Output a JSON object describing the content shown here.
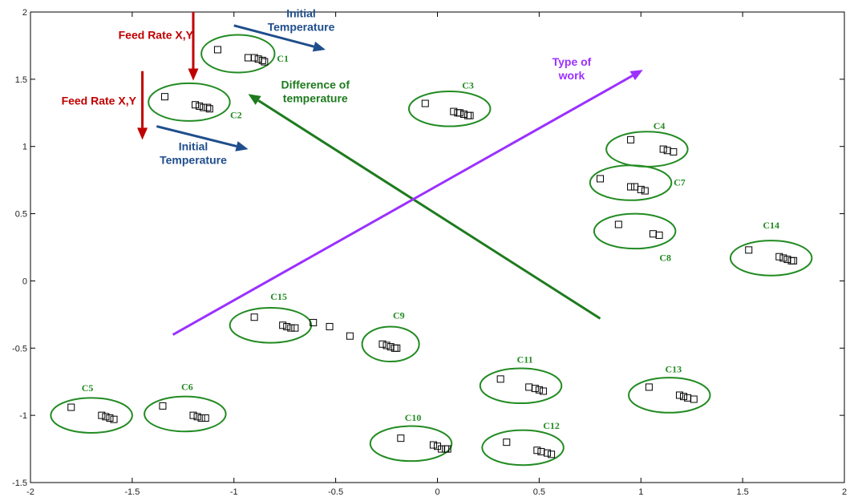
{
  "chart_data": {
    "type": "scatter",
    "title": "",
    "xlabel": "",
    "ylabel": "",
    "xlim": [
      -2,
      2
    ],
    "ylim": [
      -1.5,
      2
    ],
    "grid": false,
    "x_ticks": [
      -2,
      -1.5,
      -1,
      -0.5,
      0,
      0.5,
      1,
      1.5,
      2
    ],
    "y_ticks": [
      -1.5,
      -1,
      -0.5,
      0,
      0.5,
      1,
      1.5,
      2
    ],
    "x_tick_labels": [
      "-2",
      "-1.5",
      "-1",
      "-0.5",
      "0",
      "0.5",
      "1",
      "1.5",
      "2"
    ],
    "y_tick_labels": [
      "-1.5",
      "-1",
      "-0.5",
      "0",
      "0.5",
      "1",
      "1.5",
      "2"
    ],
    "colors": {
      "cluster": "#228B22",
      "feed_rate": "#C00000",
      "initial_temperature": "#1F4E8C",
      "difference": "#1E7B1E",
      "type_of_work": "#9B30FF",
      "marker": "#000000"
    },
    "clusters": [
      {
        "label": "C1",
        "center": [
          -0.98,
          1.69
        ],
        "radii": [
          0.18,
          0.14
        ],
        "points": [
          [
            -1.08,
            1.72
          ],
          [
            -0.93,
            1.66
          ],
          [
            -0.9,
            1.66
          ],
          [
            -0.88,
            1.65
          ],
          [
            -0.86,
            1.64
          ],
          [
            -0.85,
            1.63
          ]
        ]
      },
      {
        "label": "C2",
        "center": [
          -1.22,
          1.33
        ],
        "radii": [
          0.2,
          0.14
        ],
        "points": [
          [
            -1.34,
            1.37
          ],
          [
            -1.19,
            1.31
          ],
          [
            -1.17,
            1.3
          ],
          [
            -1.15,
            1.29
          ],
          [
            -1.13,
            1.29
          ],
          [
            -1.12,
            1.28
          ]
        ]
      },
      {
        "label": "C3",
        "center": [
          0.06,
          1.28
        ],
        "radii": [
          0.2,
          0.13
        ],
        "points": [
          [
            -0.06,
            1.32
          ],
          [
            0.08,
            1.26
          ],
          [
            0.1,
            1.25
          ],
          [
            0.11,
            1.25
          ],
          [
            0.13,
            1.24
          ],
          [
            0.15,
            1.23
          ],
          [
            0.16,
            1.23
          ]
        ]
      },
      {
        "label": "C4",
        "center": [
          1.03,
          0.98
        ],
        "radii": [
          0.2,
          0.13
        ],
        "points": [
          [
            0.95,
            1.05
          ],
          [
            1.11,
            0.98
          ],
          [
            1.13,
            0.97
          ],
          [
            1.16,
            0.96
          ]
        ]
      },
      {
        "label": "C7",
        "center": [
          0.95,
          0.73
        ],
        "radii": [
          0.2,
          0.13
        ],
        "points": [
          [
            0.8,
            0.76
          ],
          [
            0.95,
            0.7
          ],
          [
            0.97,
            0.7
          ],
          [
            1.0,
            0.68
          ],
          [
            1.02,
            0.67
          ]
        ]
      },
      {
        "label": "C8",
        "center": [
          0.97,
          0.37
        ],
        "radii": [
          0.2,
          0.13
        ],
        "points": [
          [
            0.89,
            0.42
          ],
          [
            1.06,
            0.35
          ],
          [
            1.09,
            0.34
          ]
        ]
      },
      {
        "label": "C14",
        "center": [
          1.64,
          0.17
        ],
        "radii": [
          0.2,
          0.13
        ],
        "points": [
          [
            1.53,
            0.23
          ],
          [
            1.68,
            0.18
          ],
          [
            1.7,
            0.17
          ],
          [
            1.72,
            0.16
          ],
          [
            1.74,
            0.15
          ],
          [
            1.75,
            0.15
          ]
        ]
      },
      {
        "label": "C15",
        "center": [
          -0.82,
          -0.33
        ],
        "radii": [
          0.2,
          0.13
        ],
        "points": [
          [
            -0.9,
            -0.27
          ],
          [
            -0.76,
            -0.33
          ],
          [
            -0.74,
            -0.34
          ],
          [
            -0.72,
            -0.35
          ],
          [
            -0.7,
            -0.35
          ]
        ]
      },
      {
        "label": "C9",
        "center": [
          -0.23,
          -0.47
        ],
        "radii": [
          0.14,
          0.13
        ],
        "points": [
          [
            -0.27,
            -0.47
          ],
          [
            -0.25,
            -0.48
          ],
          [
            -0.23,
            -0.49
          ],
          [
            -0.21,
            -0.5
          ],
          [
            -0.2,
            -0.5
          ]
        ]
      },
      {
        "label": "C5",
        "center": [
          -1.7,
          -1.0
        ],
        "radii": [
          0.2,
          0.13
        ],
        "points": [
          [
            -1.8,
            -0.94
          ],
          [
            -1.65,
            -1.0
          ],
          [
            -1.63,
            -1.01
          ],
          [
            -1.61,
            -1.02
          ],
          [
            -1.59,
            -1.03
          ]
        ]
      },
      {
        "label": "C6",
        "center": [
          -1.24,
          -0.99
        ],
        "radii": [
          0.2,
          0.13
        ],
        "points": [
          [
            -1.35,
            -0.93
          ],
          [
            -1.2,
            -1.0
          ],
          [
            -1.18,
            -1.01
          ],
          [
            -1.16,
            -1.02
          ],
          [
            -1.14,
            -1.02
          ]
        ]
      },
      {
        "label": "C10",
        "center": [
          -0.13,
          -1.21
        ],
        "radii": [
          0.2,
          0.13
        ],
        "points": [
          [
            -0.18,
            -1.17
          ],
          [
            -0.02,
            -1.22
          ],
          [
            0.0,
            -1.23
          ],
          [
            0.02,
            -1.25
          ],
          [
            0.04,
            -1.25
          ],
          [
            0.05,
            -1.25
          ]
        ]
      },
      {
        "label": "C11",
        "center": [
          0.41,
          -0.78
        ],
        "radii": [
          0.2,
          0.13
        ],
        "points": [
          [
            0.31,
            -0.73
          ],
          [
            0.45,
            -0.79
          ],
          [
            0.48,
            -0.8
          ],
          [
            0.5,
            -0.81
          ],
          [
            0.52,
            -0.82
          ]
        ]
      },
      {
        "label": "C12",
        "center": [
          0.42,
          -1.24
        ],
        "radii": [
          0.2,
          0.13
        ],
        "points": [
          [
            0.34,
            -1.2
          ],
          [
            0.49,
            -1.26
          ],
          [
            0.51,
            -1.27
          ],
          [
            0.54,
            -1.28
          ],
          [
            0.56,
            -1.29
          ]
        ]
      },
      {
        "label": "C13",
        "center": [
          1.14,
          -0.85
        ],
        "radii": [
          0.2,
          0.13
        ],
        "points": [
          [
            1.04,
            -0.79
          ],
          [
            1.19,
            -0.85
          ],
          [
            1.21,
            -0.86
          ],
          [
            1.23,
            -0.87
          ],
          [
            1.26,
            -0.88
          ]
        ]
      }
    ],
    "free_points": [
      [
        -0.61,
        -0.31
      ],
      [
        -0.53,
        -0.34
      ],
      [
        -0.43,
        -0.41
      ]
    ],
    "annotations": [
      {
        "lines": [
          "Feed Rate X,Y"
        ],
        "color_key": "feed_rate",
        "anchor": "end",
        "at": [
          -1.2,
          1.8
        ]
      },
      {
        "lines": [
          "Feed Rate X,Y"
        ],
        "color_key": "feed_rate",
        "anchor": "end",
        "at": [
          -1.48,
          1.31
        ]
      },
      {
        "lines": [
          "Initial",
          "Temperature"
        ],
        "color_key": "initial_temperature",
        "anchor": "middle",
        "at": [
          -0.67,
          1.96
        ]
      },
      {
        "lines": [
          "Initial",
          "Temperature"
        ],
        "color_key": "initial_temperature",
        "anchor": "middle",
        "at": [
          -1.2,
          0.97
        ]
      },
      {
        "lines": [
          "Difference of",
          "temperature"
        ],
        "color_key": "difference",
        "anchor": "middle",
        "at": [
          -0.6,
          1.43
        ]
      },
      {
        "lines": [
          "Type of",
          "work"
        ],
        "color_key": "type_of_work",
        "anchor": "middle",
        "at": [
          0.66,
          1.6
        ]
      }
    ],
    "arrows": [
      {
        "color_key": "feed_rate",
        "from": [
          -1.2,
          2.0
        ],
        "to": [
          -1.2,
          1.49
        ]
      },
      {
        "color_key": "feed_rate",
        "from": [
          -1.45,
          1.56
        ],
        "to": [
          -1.45,
          1.05
        ]
      },
      {
        "color_key": "initial_temperature",
        "from": [
          -1.0,
          1.9
        ],
        "to": [
          -0.55,
          1.72
        ]
      },
      {
        "color_key": "initial_temperature",
        "from": [
          -1.38,
          1.15
        ],
        "to": [
          -0.93,
          0.98
        ]
      },
      {
        "color_key": "difference",
        "from": [
          0.8,
          -0.28
        ],
        "to": [
          -0.93,
          1.39
        ]
      },
      {
        "color_key": "type_of_work",
        "from": [
          -1.3,
          -0.4
        ],
        "to": [
          1.01,
          1.57
        ]
      }
    ]
  }
}
